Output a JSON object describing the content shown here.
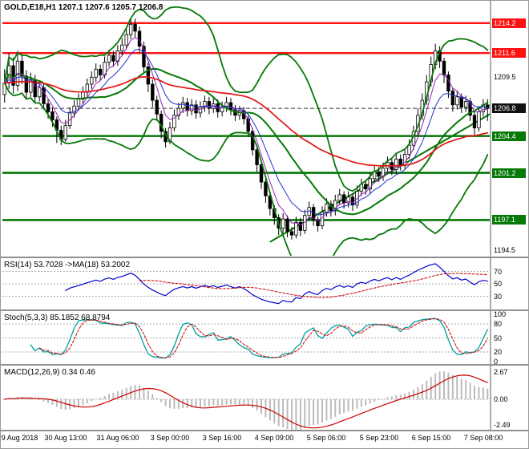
{
  "header": {
    "symbol_ohlc": "GOLD,E18,H1 1207.1 1207.6 1205.7 1206.8"
  },
  "colors": {
    "background": "#ffffff",
    "candle": "#000000",
    "up_candle": "#ffffff",
    "down_candle": "#000000",
    "bollinger": "#067806",
    "ma_slow": "#e51313",
    "ma_mid": "#2233cc",
    "ma_fast": "#9922bb",
    "trendline": "#067806",
    "level_red": "#ff1111",
    "level_green": "#067806",
    "current_price_line": "#333333",
    "rsi": "#0000cc",
    "rsi_ma": "#cc0000",
    "stoch_k": "#00a0a0",
    "stoch_d": "#cc0000",
    "macd_hist": "#bbbbbb",
    "macd_signal": "#cc0000",
    "grid": "#aaaaaa",
    "separator": "#909090",
    "text": "#000000"
  },
  "chart_data": {
    "type": "candlestick",
    "symbol": "GOLD",
    "timeframe": "H1",
    "ohlc_display": {
      "open": "1207.1",
      "high": "1207.6",
      "low": "1205.7",
      "close": "1206.8"
    },
    "current_price": 1206.8,
    "price_range": {
      "min": 1194.0,
      "max": 1216.0
    },
    "candles": [
      [
        1208.0,
        1210.2,
        1207.3,
        1209.0
      ],
      [
        1209.0,
        1211.6,
        1208.5,
        1210.5
      ],
      [
        1210.5,
        1211.2,
        1208.1,
        1208.8
      ],
      [
        1208.8,
        1211.8,
        1208.3,
        1210.9
      ],
      [
        1210.9,
        1211.5,
        1208.9,
        1209.6
      ],
      [
        1209.6,
        1210.1,
        1207.6,
        1208.2
      ],
      [
        1208.2,
        1209.9,
        1207.8,
        1209.3
      ],
      [
        1209.3,
        1209.7,
        1207.2,
        1207.8
      ],
      [
        1207.8,
        1209.1,
        1207.4,
        1208.6
      ],
      [
        1208.6,
        1208.9,
        1206.7,
        1207.2
      ],
      [
        1207.2,
        1207.6,
        1205.9,
        1206.5
      ],
      [
        1206.5,
        1206.9,
        1205.2,
        1205.8
      ],
      [
        1205.8,
        1206.1,
        1203.8,
        1204.9
      ],
      [
        1204.9,
        1205.3,
        1203.6,
        1204.1
      ],
      [
        1204.1,
        1205.8,
        1203.9,
        1205.3
      ],
      [
        1205.3,
        1206.9,
        1205.0,
        1206.4
      ],
      [
        1206.4,
        1207.5,
        1206.0,
        1207.0
      ],
      [
        1207.0,
        1208.1,
        1206.6,
        1207.6
      ],
      [
        1207.6,
        1208.7,
        1207.2,
        1208.2
      ],
      [
        1208.2,
        1209.4,
        1207.8,
        1208.9
      ],
      [
        1208.9,
        1210.0,
        1208.5,
        1209.5
      ],
      [
        1209.5,
        1210.7,
        1209.1,
        1210.2
      ],
      [
        1210.2,
        1210.6,
        1209.2,
        1209.7
      ],
      [
        1209.7,
        1211.3,
        1209.4,
        1210.8
      ],
      [
        1210.8,
        1211.9,
        1210.4,
        1211.4
      ],
      [
        1211.4,
        1211.8,
        1210.4,
        1210.9
      ],
      [
        1210.9,
        1212.3,
        1210.5,
        1211.8
      ],
      [
        1211.8,
        1212.9,
        1211.4,
        1212.3
      ],
      [
        1212.3,
        1213.8,
        1211.9,
        1213.2
      ],
      [
        1213.2,
        1214.7,
        1212.8,
        1214.1
      ],
      [
        1214.1,
        1214.6,
        1212.9,
        1213.5
      ],
      [
        1213.5,
        1213.9,
        1211.6,
        1212.2
      ],
      [
        1212.2,
        1212.6,
        1209.8,
        1210.4
      ],
      [
        1210.4,
        1210.8,
        1208.2,
        1208.9
      ],
      [
        1208.9,
        1209.3,
        1206.9,
        1207.5
      ],
      [
        1207.5,
        1207.9,
        1205.7,
        1206.3
      ],
      [
        1206.3,
        1206.6,
        1204.2,
        1204.8
      ],
      [
        1204.8,
        1205.1,
        1203.4,
        1203.9
      ],
      [
        1203.9,
        1205.6,
        1203.7,
        1205.1
      ],
      [
        1205.1,
        1206.7,
        1204.8,
        1206.2
      ],
      [
        1206.2,
        1207.3,
        1205.8,
        1206.8
      ],
      [
        1206.8,
        1207.8,
        1206.4,
        1207.3
      ],
      [
        1207.3,
        1207.7,
        1206.1,
        1206.6
      ],
      [
        1206.6,
        1207.6,
        1206.2,
        1207.1
      ],
      [
        1207.1,
        1207.5,
        1205.9,
        1206.4
      ],
      [
        1206.4,
        1207.4,
        1206.0,
        1206.9
      ],
      [
        1206.9,
        1207.9,
        1206.5,
        1207.4
      ],
      [
        1207.4,
        1207.8,
        1206.3,
        1206.8
      ],
      [
        1206.8,
        1207.7,
        1206.4,
        1207.2
      ],
      [
        1207.2,
        1207.6,
        1206.0,
        1206.5
      ],
      [
        1206.5,
        1207.4,
        1206.1,
        1206.9
      ],
      [
        1206.9,
        1207.8,
        1206.5,
        1207.3
      ],
      [
        1207.3,
        1207.7,
        1206.2,
        1206.7
      ],
      [
        1206.7,
        1207.1,
        1205.7,
        1206.2
      ],
      [
        1206.2,
        1207.0,
        1205.8,
        1206.6
      ],
      [
        1206.6,
        1206.9,
        1205.4,
        1205.9
      ],
      [
        1205.9,
        1206.2,
        1204.3,
        1204.8
      ],
      [
        1204.8,
        1205.1,
        1202.7,
        1203.2
      ],
      [
        1203.2,
        1203.5,
        1201.3,
        1201.9
      ],
      [
        1201.9,
        1202.2,
        1199.8,
        1200.4
      ],
      [
        1200.4,
        1200.7,
        1198.6,
        1199.2
      ],
      [
        1199.2,
        1199.5,
        1197.5,
        1198.1
      ],
      [
        1198.1,
        1198.4,
        1196.7,
        1197.3
      ],
      [
        1197.3,
        1197.6,
        1195.8,
        1196.4
      ],
      [
        1196.4,
        1197.7,
        1196.0,
        1197.2
      ],
      [
        1197.2,
        1197.5,
        1195.6,
        1196.1
      ],
      [
        1196.1,
        1196.5,
        1195.4,
        1195.8
      ],
      [
        1195.8,
        1197.4,
        1195.5,
        1196.9
      ],
      [
        1196.9,
        1197.3,
        1195.7,
        1196.2
      ],
      [
        1196.2,
        1198.0,
        1195.9,
        1197.5
      ],
      [
        1197.5,
        1198.7,
        1197.1,
        1198.2
      ],
      [
        1198.2,
        1198.5,
        1196.6,
        1197.1
      ],
      [
        1197.1,
        1197.4,
        1196.1,
        1196.6
      ],
      [
        1196.6,
        1198.3,
        1196.3,
        1197.8
      ],
      [
        1197.8,
        1199.0,
        1197.4,
        1198.5
      ],
      [
        1198.5,
        1198.8,
        1197.4,
        1197.9
      ],
      [
        1197.9,
        1199.3,
        1197.5,
        1198.8
      ],
      [
        1198.8,
        1199.8,
        1198.4,
        1199.3
      ],
      [
        1199.3,
        1199.6,
        1198.1,
        1198.6
      ],
      [
        1198.6,
        1199.6,
        1198.2,
        1199.1
      ],
      [
        1199.1,
        1199.4,
        1197.9,
        1198.4
      ],
      [
        1198.4,
        1200.1,
        1198.1,
        1199.6
      ],
      [
        1199.6,
        1200.7,
        1199.2,
        1200.2
      ],
      [
        1200.2,
        1200.6,
        1199.3,
        1199.8
      ],
      [
        1199.8,
        1201.2,
        1199.4,
        1200.7
      ],
      [
        1200.7,
        1201.8,
        1200.3,
        1201.3
      ],
      [
        1201.3,
        1201.7,
        1200.4,
        1200.9
      ],
      [
        1200.9,
        1202.1,
        1200.5,
        1201.6
      ],
      [
        1201.6,
        1202.6,
        1201.2,
        1202.1
      ],
      [
        1202.1,
        1202.4,
        1201.0,
        1201.5
      ],
      [
        1201.5,
        1202.9,
        1201.1,
        1202.4
      ],
      [
        1202.4,
        1202.8,
        1201.4,
        1201.9
      ],
      [
        1201.9,
        1203.3,
        1201.5,
        1202.8
      ],
      [
        1202.8,
        1204.1,
        1202.4,
        1203.6
      ],
      [
        1203.6,
        1205.3,
        1203.2,
        1204.8
      ],
      [
        1204.8,
        1206.8,
        1204.4,
        1206.2
      ],
      [
        1206.2,
        1208.1,
        1205.8,
        1207.5
      ],
      [
        1207.5,
        1209.7,
        1207.1,
        1209.1
      ],
      [
        1209.1,
        1211.3,
        1208.7,
        1210.6
      ],
      [
        1210.6,
        1212.4,
        1210.2,
        1211.8
      ],
      [
        1211.8,
        1212.2,
        1210.3,
        1210.9
      ],
      [
        1210.9,
        1211.2,
        1209.0,
        1209.7
      ],
      [
        1209.7,
        1210.0,
        1207.7,
        1208.3
      ],
      [
        1208.3,
        1208.6,
        1206.5,
        1207.1
      ],
      [
        1207.1,
        1208.3,
        1206.7,
        1207.8
      ],
      [
        1207.8,
        1208.1,
        1206.4,
        1206.9
      ],
      [
        1206.9,
        1207.9,
        1206.5,
        1207.4
      ],
      [
        1207.4,
        1207.7,
        1205.7,
        1206.2
      ],
      [
        1206.2,
        1206.5,
        1204.5,
        1205.1
      ],
      [
        1205.1,
        1207.0,
        1204.8,
        1206.5
      ],
      [
        1206.5,
        1207.6,
        1206.1,
        1207.1
      ],
      [
        1207.1,
        1207.6,
        1205.7,
        1206.8
      ]
    ],
    "x_labels": [
      "29 Aug 2018",
      "30 Aug 13:00",
      "31 Aug 06:00",
      "3 Sep 00:00",
      "3 Sep 16:00",
      "4 Sep 09:00",
      "5 Sep 06:00",
      "5 Sep 23:00",
      "6 Sep 15:00",
      "7 Sep 08:00"
    ],
    "x_label_indices": [
      3,
      14,
      26,
      38,
      50,
      62,
      74,
      86,
      98,
      110
    ],
    "y_axis_labels": [
      {
        "text": "1214.2",
        "value": 1214.2,
        "bg": "#ff1111",
        "fg": "#ffffff"
      },
      {
        "text": "1211.6",
        "value": 1211.6,
        "bg": "#ff1111",
        "fg": "#ffffff"
      },
      {
        "text": "1209.5",
        "value": 1209.5,
        "bg": null,
        "fg": "#000000"
      },
      {
        "text": "1206.8",
        "value": 1206.8,
        "bg": "#111111",
        "fg": "#ffffff"
      },
      {
        "text": "1204.4",
        "value": 1204.4,
        "bg": "#067806",
        "fg": "#ffffff"
      },
      {
        "text": "1201.2",
        "value": 1201.2,
        "bg": "#067806",
        "fg": "#ffffff"
      },
      {
        "text": "1197.1",
        "value": 1197.1,
        "bg": "#067806",
        "fg": "#ffffff"
      },
      {
        "text": "1194.5",
        "value": 1194.5,
        "bg": null,
        "fg": "#000000"
      }
    ],
    "levels": [
      {
        "price": 1214.2,
        "color": "#ff1111",
        "width": 2.4
      },
      {
        "price": 1211.6,
        "color": "#ff1111",
        "width": 2.4
      },
      {
        "price": 1204.4,
        "color": "#067806",
        "width": 2.6
      },
      {
        "price": 1201.2,
        "color": "#067806",
        "width": 2.6
      },
      {
        "price": 1197.1,
        "color": "#067806",
        "width": 2.6
      }
    ],
    "trendline": {
      "from_index": 61,
      "from_price": 1195.2,
      "to_index": 112,
      "to_price": 1206.4
    },
    "overlays": {
      "bollinger_period": 20,
      "bollinger_deviation": 2,
      "ma_fast_period": 5,
      "ma_mid_period": 10,
      "ma_slow_period": 55
    },
    "panels": {
      "rsi": {
        "header": "RSI(14) 53.7028 ->MA(18) 53.2002",
        "period": 14,
        "ma_period": 18,
        "level_lines": [
          70,
          50,
          30
        ],
        "axis": [
          {
            "t": "70",
            "v": 70
          },
          {
            "t": "50",
            "v": 50
          },
          {
            "t": "30",
            "v": 30
          }
        ]
      },
      "stoch": {
        "header": "Stoch(5,3,3) 85.1852 68.8794",
        "k": 5,
        "d": 3,
        "slowing": 3,
        "level_lines": [
          80,
          50,
          20
        ],
        "axis": [
          {
            "t": "100",
            "v": 100
          },
          {
            "t": "80",
            "v": 80
          },
          {
            "t": "50",
            "v": 50
          },
          {
            "t": "20",
            "v": 20
          },
          {
            "t": "0",
            "v": 0
          }
        ]
      },
      "macd": {
        "header": "MACD(12,26,9) 0.34 0.46",
        "fast": 12,
        "slow": 26,
        "signal": 9,
        "level_lines": [
          0
        ],
        "axis": [
          {
            "t": "2.67",
            "v": 2.67
          },
          {
            "t": "0.00",
            "v": 0
          },
          {
            "t": "-2.49",
            "v": -2.49
          }
        ]
      }
    }
  }
}
